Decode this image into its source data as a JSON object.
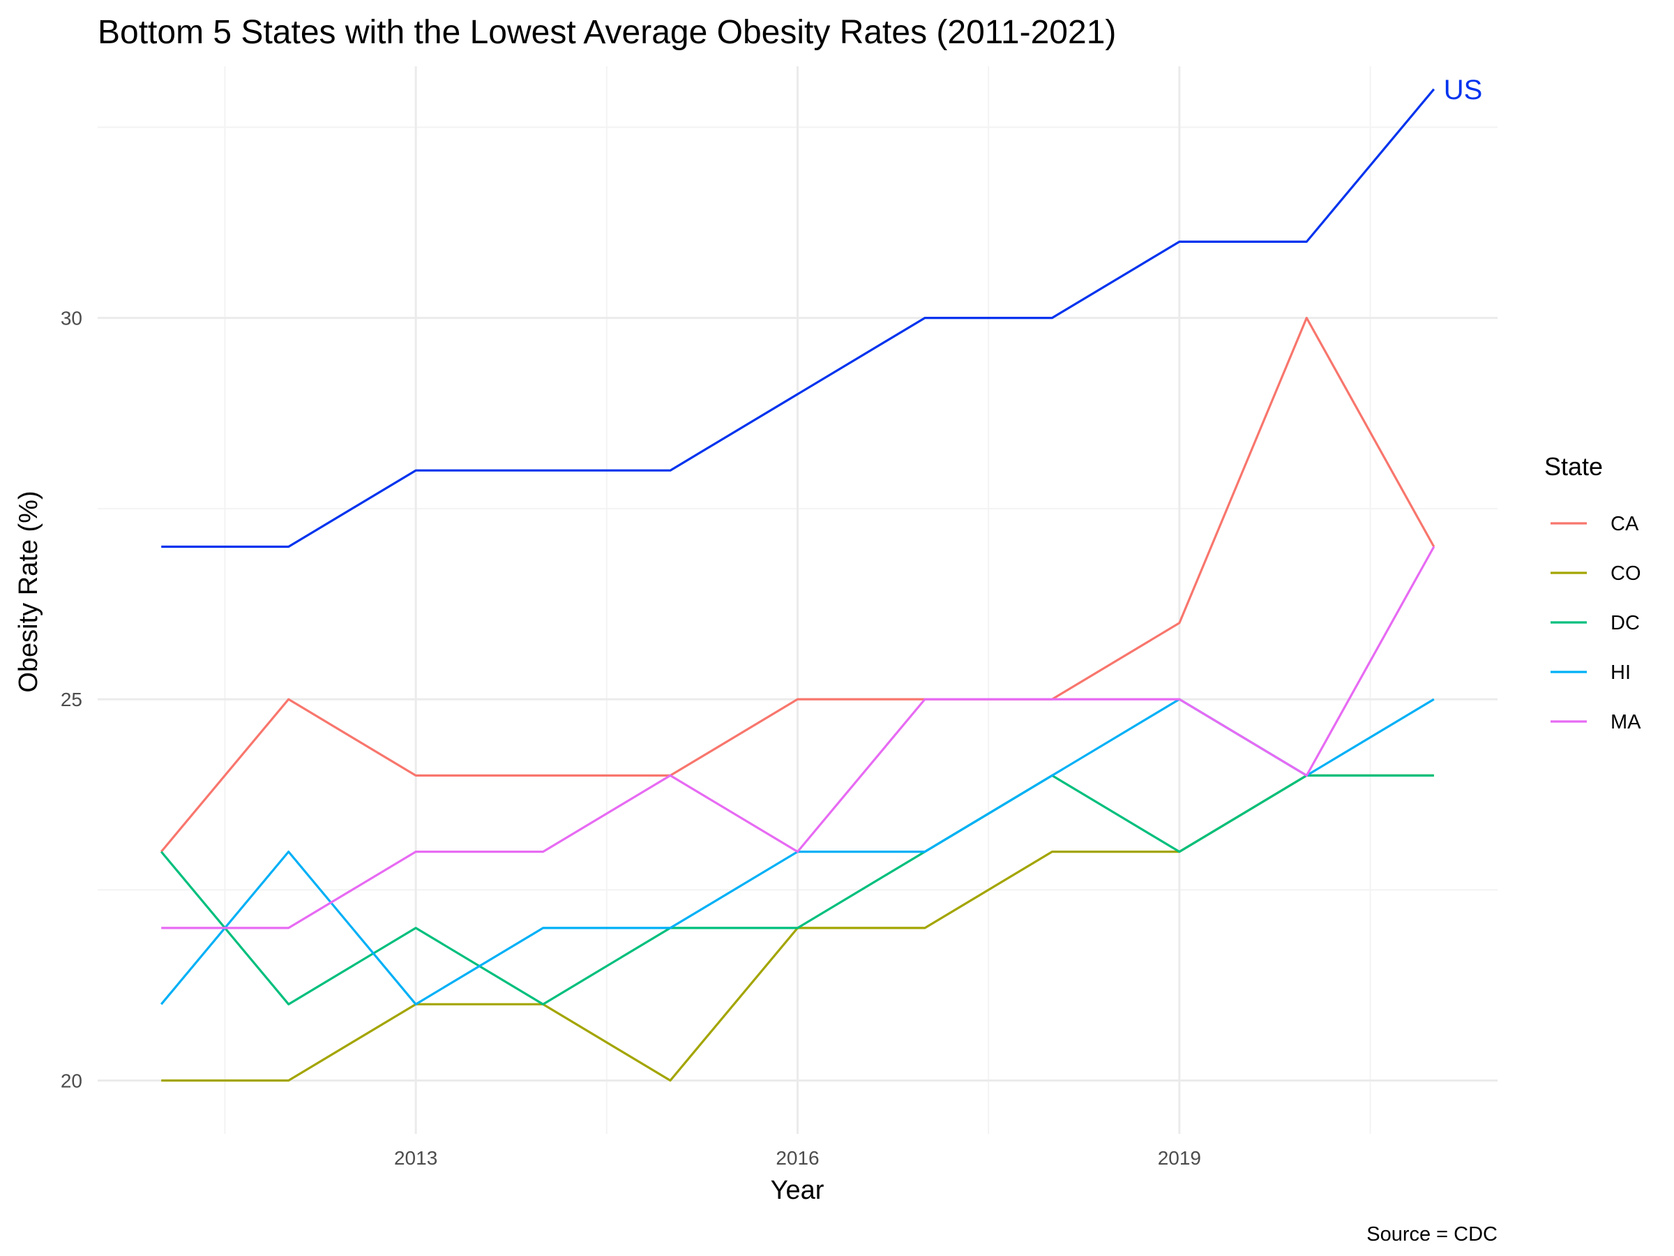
{
  "chart_data": {
    "type": "line",
    "title": "Bottom 5 States with the Lowest Average Obesity Rates (2011-2021)",
    "xlabel": "Year",
    "ylabel": "Obesity Rate (%)",
    "caption": "Source = CDC",
    "legend_title": "State",
    "legend_position": "right",
    "grid": true,
    "x": [
      2011,
      2012,
      2013,
      2014,
      2015,
      2016,
      2017,
      2018,
      2019,
      2020,
      2021
    ],
    "xlim": [
      2010.5,
      2021.5
    ],
    "ylim": [
      19.3,
      33.3
    ],
    "x_ticks": [
      2013,
      2016,
      2019
    ],
    "x_tick_labels": [
      "2013",
      "2016",
      "2019"
    ],
    "x_minor_ticks": [
      2011.5,
      2014.5,
      2017.5,
      2020.5
    ],
    "y_ticks": [
      20,
      25,
      30
    ],
    "y_tick_labels": [
      "20",
      "25",
      "30"
    ],
    "y_minor_ticks": [
      22.5,
      27.5,
      32.5
    ],
    "series": [
      {
        "name": "CA",
        "color": "#F8766D",
        "values": [
          23,
          25,
          24,
          24,
          24,
          25,
          25,
          25,
          26,
          30,
          27
        ]
      },
      {
        "name": "CO",
        "color": "#A3A500",
        "values": [
          20,
          20,
          21,
          21,
          20,
          22,
          22,
          23,
          23,
          24,
          24
        ]
      },
      {
        "name": "DC",
        "color": "#00BF7D",
        "values": [
          23,
          21,
          22,
          21,
          22,
          22,
          23,
          24,
          23,
          24,
          24
        ]
      },
      {
        "name": "HI",
        "color": "#00B0F6",
        "values": [
          21,
          23,
          21,
          22,
          22,
          23,
          23,
          24,
          25,
          24,
          25
        ]
      },
      {
        "name": "MA",
        "color": "#E76BF3",
        "values": [
          22,
          22,
          23,
          23,
          24,
          23,
          25,
          25,
          25,
          24,
          27
        ]
      }
    ],
    "reference_series": {
      "label": "US",
      "color": "#0033EE",
      "values": [
        27,
        27,
        28,
        28,
        28,
        29,
        30,
        30,
        31,
        31,
        33
      ]
    }
  }
}
